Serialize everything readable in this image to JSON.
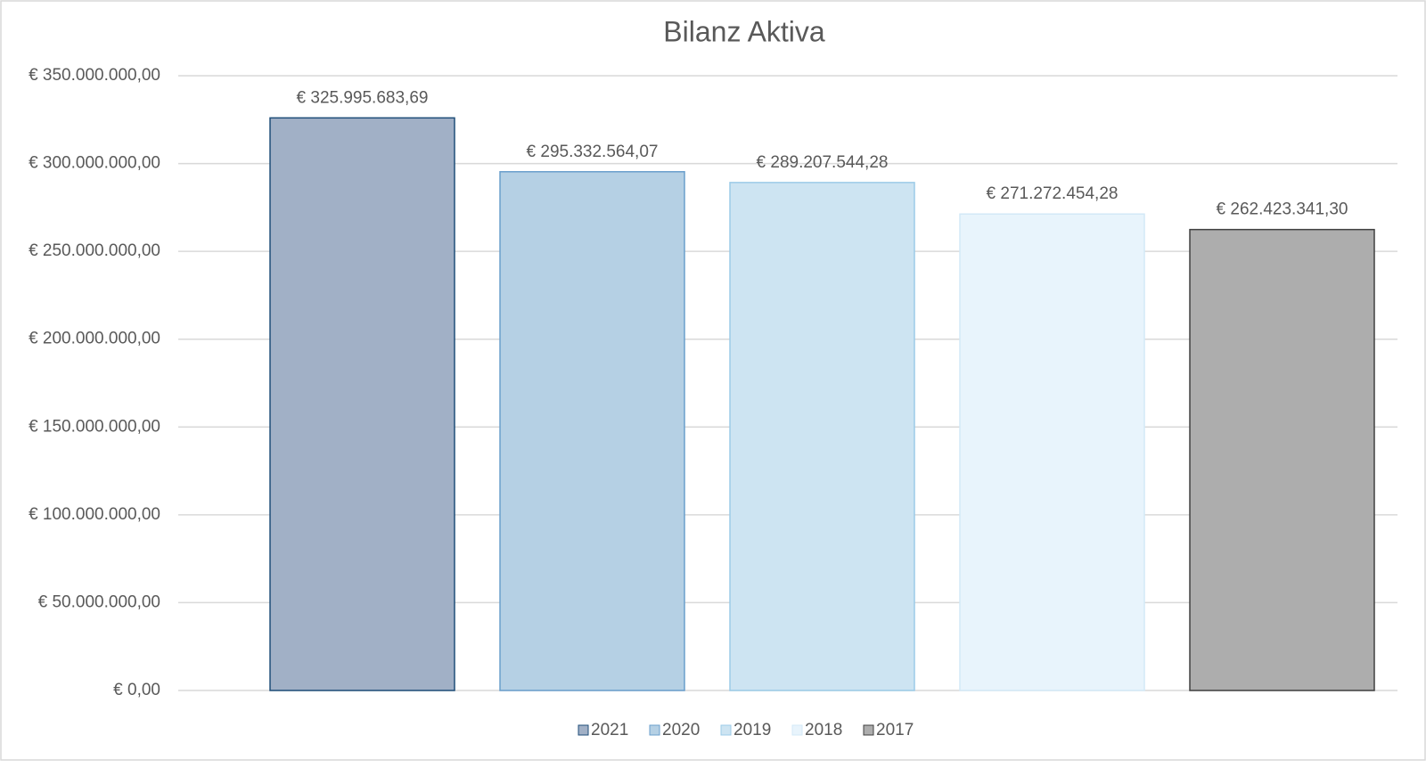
{
  "chart_data": {
    "type": "bar",
    "title": "Bilanz Aktiva",
    "categories": [
      null
    ],
    "series": [
      {
        "name": "2021",
        "color": "#a1b0c6",
        "edge_color": "#1f4e79",
        "values": [
          325995683.69
        ],
        "value_labels": [
          "€ 325.995.683,69"
        ]
      },
      {
        "name": "2020",
        "color": "#b5d0e4",
        "edge_color": "#6a9fcc",
        "values": [
          295332564.07
        ],
        "value_labels": [
          "€ 295.332.564,07"
        ]
      },
      {
        "name": "2019",
        "color": "#cde4f2",
        "edge_color": "#9ccbe8",
        "values": [
          289207544.28
        ],
        "value_labels": [
          "€ 289.207.544,28"
        ]
      },
      {
        "name": "2018",
        "color": "#e8f4fc",
        "edge_color": "#d3e9f7",
        "values": [
          271272454.28
        ],
        "value_labels": [
          "€ 271.272.454,28"
        ]
      },
      {
        "name": "2017",
        "color": "#adadad",
        "edge_color": "#404040",
        "values": [
          262423341.3
        ],
        "value_labels": [
          "€ 262.423.341,30"
        ]
      }
    ],
    "ylim": [
      0,
      350000000
    ],
    "yticks": [
      {
        "value": 0,
        "label": "€ 0,00"
      },
      {
        "value": 50000000,
        "label": "€ 50.000.000,00"
      },
      {
        "value": 100000000,
        "label": "€ 100.000.000,00"
      },
      {
        "value": 150000000,
        "label": "€ 150.000.000,00"
      },
      {
        "value": 200000000,
        "label": "€ 200.000.000,00"
      },
      {
        "value": 250000000,
        "label": "€ 250.000.000,00"
      },
      {
        "value": 300000000,
        "label": "€ 300.000.000,00"
      },
      {
        "value": 350000000,
        "label": "€ 350.000.000,00"
      }
    ],
    "grid": true,
    "legend": "bottom"
  }
}
